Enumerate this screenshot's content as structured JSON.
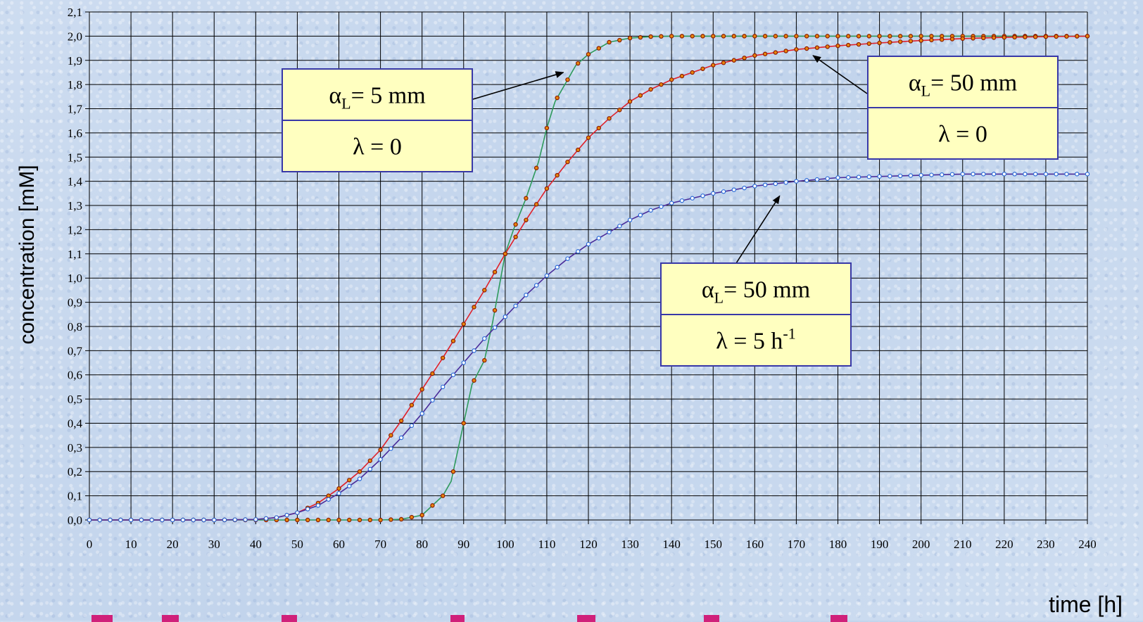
{
  "chart_data": {
    "type": "line",
    "title": "",
    "xlabel": "time [h]",
    "ylabel": "concentration [mM]",
    "xlim": [
      0,
      240
    ],
    "ylim": [
      0,
      2.1
    ],
    "x_ticks": [
      "0",
      "10",
      "20",
      "30",
      "40",
      "50",
      "60",
      "70",
      "80",
      "90",
      "100",
      "110",
      "120",
      "130",
      "140",
      "150",
      "160",
      "170",
      "180",
      "190",
      "200",
      "210",
      "220",
      "230",
      "240"
    ],
    "y_ticks": [
      "0,0",
      "0,1",
      "0,2",
      "0,3",
      "0,4",
      "0,5",
      "0,6",
      "0,7",
      "0,8",
      "0,9",
      "1,0",
      "1,1",
      "1,2",
      "1,3",
      "1,4",
      "1,5",
      "1,6",
      "1,7",
      "1,8",
      "1,9",
      "2,0",
      "2,1"
    ],
    "grid": true,
    "legend": "none",
    "series": [
      {
        "key": "alpha5_lambda0",
        "line_color": "#2e9a5c",
        "marker_fill": "#e8860c",
        "marker_edge": "#8b1a00",
        "points": [
          [
            0,
            0
          ],
          [
            10,
            0
          ],
          [
            20,
            0
          ],
          [
            30,
            0
          ],
          [
            40,
            0
          ],
          [
            50,
            0
          ],
          [
            60,
            0
          ],
          [
            70,
            0
          ],
          [
            75,
            0.003
          ],
          [
            80,
            0.02
          ],
          [
            85,
            0.1
          ],
          [
            87,
            0.16
          ],
          [
            90,
            0.4
          ],
          [
            92,
            0.56
          ],
          [
            95,
            0.66
          ],
          [
            97,
            0.82
          ],
          [
            100,
            1.1
          ],
          [
            102,
            1.2
          ],
          [
            105,
            1.33
          ],
          [
            108,
            1.48
          ],
          [
            110,
            1.62
          ],
          [
            112,
            1.73
          ],
          [
            115,
            1.82
          ],
          [
            117,
            1.88
          ],
          [
            120,
            1.925
          ],
          [
            125,
            1.975
          ],
          [
            130,
            1.992
          ],
          [
            135,
            1.998
          ],
          [
            140,
            2.0
          ],
          [
            160,
            2.0
          ],
          [
            200,
            2.0
          ],
          [
            240,
            2.0
          ]
        ]
      },
      {
        "key": "alpha50_lambda0",
        "line_color": "#e0202a",
        "marker_fill": "#e8860c",
        "marker_edge": "#8b1a00",
        "points": [
          [
            0,
            0
          ],
          [
            10,
            0
          ],
          [
            20,
            0
          ],
          [
            30,
            0
          ],
          [
            40,
            0.002
          ],
          [
            45,
            0.01
          ],
          [
            50,
            0.03
          ],
          [
            55,
            0.07
          ],
          [
            60,
            0.13
          ],
          [
            65,
            0.2
          ],
          [
            70,
            0.29
          ],
          [
            75,
            0.41
          ],
          [
            80,
            0.54
          ],
          [
            85,
            0.67
          ],
          [
            90,
            0.81
          ],
          [
            95,
            0.95
          ],
          [
            100,
            1.1
          ],
          [
            105,
            1.24
          ],
          [
            110,
            1.37
          ],
          [
            115,
            1.48
          ],
          [
            120,
            1.58
          ],
          [
            125,
            1.66
          ],
          [
            130,
            1.73
          ],
          [
            135,
            1.78
          ],
          [
            140,
            1.82
          ],
          [
            150,
            1.88
          ],
          [
            160,
            1.92
          ],
          [
            170,
            1.945
          ],
          [
            180,
            1.96
          ],
          [
            190,
            1.972
          ],
          [
            200,
            1.982
          ],
          [
            210,
            1.99
          ],
          [
            220,
            1.995
          ],
          [
            230,
            1.998
          ],
          [
            240,
            2.0
          ]
        ]
      },
      {
        "key": "alpha50_lambda5",
        "line_color": "#4a2c9a",
        "marker_fill": "#ffffff",
        "marker_edge": "#2a6ad8",
        "points": [
          [
            0,
            0
          ],
          [
            10,
            0
          ],
          [
            20,
            0
          ],
          [
            30,
            0
          ],
          [
            40,
            0.002
          ],
          [
            45,
            0.01
          ],
          [
            50,
            0.03
          ],
          [
            55,
            0.06
          ],
          [
            60,
            0.11
          ],
          [
            65,
            0.17
          ],
          [
            70,
            0.25
          ],
          [
            75,
            0.34
          ],
          [
            80,
            0.44
          ],
          [
            85,
            0.55
          ],
          [
            90,
            0.65
          ],
          [
            95,
            0.75
          ],
          [
            100,
            0.84
          ],
          [
            105,
            0.93
          ],
          [
            110,
            1.01
          ],
          [
            115,
            1.08
          ],
          [
            120,
            1.14
          ],
          [
            125,
            1.19
          ],
          [
            130,
            1.24
          ],
          [
            135,
            1.28
          ],
          [
            140,
            1.31
          ],
          [
            150,
            1.35
          ],
          [
            160,
            1.38
          ],
          [
            170,
            1.4
          ],
          [
            180,
            1.415
          ],
          [
            190,
            1.42
          ],
          [
            200,
            1.425
          ],
          [
            210,
            1.43
          ],
          [
            220,
            1.43
          ],
          [
            230,
            1.43
          ],
          [
            240,
            1.43
          ]
        ]
      }
    ],
    "annotations": [
      {
        "key": "box1",
        "alpha_symbol": "α",
        "alpha_sub": "L",
        "alpha_value": "= 5 mm",
        "lambda_text": "λ = 0",
        "lambda_sup": "",
        "arrow_to": [
          114,
          1.85
        ]
      },
      {
        "key": "box2",
        "alpha_symbol": "α",
        "alpha_sub": "L",
        "alpha_value": "= 50 mm",
        "lambda_text": "λ = 0",
        "lambda_sup": "",
        "arrow_to": [
          174,
          1.92
        ]
      },
      {
        "key": "box3",
        "alpha_symbol": "α",
        "alpha_sub": "L",
        "alpha_value": "= 50 mm",
        "lambda_text": "λ = 5 h",
        "lambda_sup": "-1",
        "arrow_to": [
          166,
          1.34
        ]
      }
    ]
  },
  "colors": {
    "plot_background": "#c9d9ee",
    "grid": "#000000",
    "box_fill": "#ffffc0",
    "box_border": "#3838a8",
    "decor_dashes": "#d0207a"
  }
}
